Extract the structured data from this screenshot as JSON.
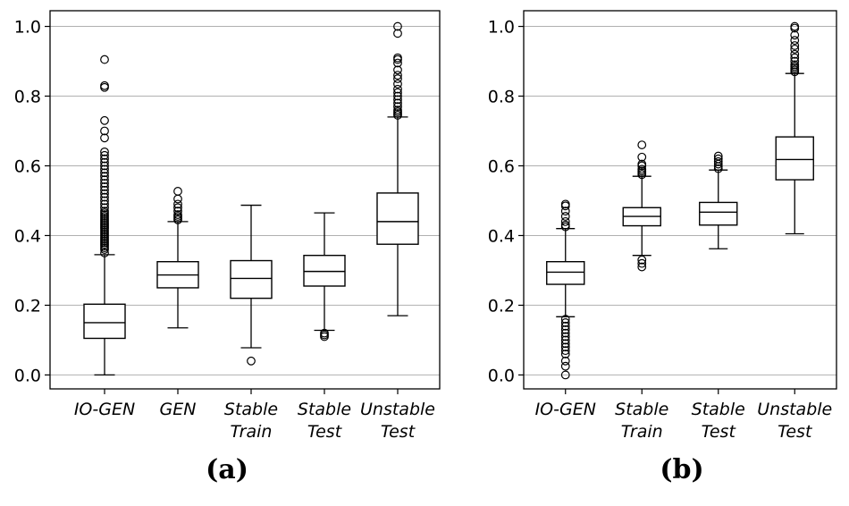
{
  "chart_data": [
    {
      "type": "box",
      "panel_label": "(a)",
      "categories": [
        [
          "IO-GEN"
        ],
        [
          "GEN"
        ],
        [
          "Stable",
          "Train"
        ],
        [
          "Stable",
          "Test"
        ],
        [
          "Unstable",
          "Test"
        ]
      ],
      "ylim": [
        -0.04,
        1.045
      ],
      "yticks": [
        0.0,
        0.2,
        0.4,
        0.6,
        0.8,
        1.0
      ],
      "grid": "horizontal",
      "boxes": [
        {
          "whisker_low": 0.0,
          "q1": 0.105,
          "median": 0.15,
          "q3": 0.203,
          "whisker_high": 0.345,
          "outliers": [
            0.35,
            0.36,
            0.365,
            0.37,
            0.375,
            0.38,
            0.385,
            0.39,
            0.395,
            0.4,
            0.405,
            0.41,
            0.415,
            0.42,
            0.425,
            0.43,
            0.435,
            0.44,
            0.445,
            0.45,
            0.455,
            0.46,
            0.465,
            0.47,
            0.48,
            0.49,
            0.5,
            0.51,
            0.52,
            0.53,
            0.54,
            0.55,
            0.56,
            0.57,
            0.58,
            0.59,
            0.6,
            0.61,
            0.62,
            0.63,
            0.64,
            0.68,
            0.7,
            0.73,
            0.825,
            0.83,
            0.905
          ]
        },
        {
          "whisker_low": 0.135,
          "q1": 0.25,
          "median": 0.287,
          "q3": 0.325,
          "whisker_high": 0.44,
          "outliers": [
            0.445,
            0.45,
            0.455,
            0.46,
            0.47,
            0.48,
            0.49,
            0.505,
            0.527
          ]
        },
        {
          "whisker_low": 0.078,
          "q1": 0.22,
          "median": 0.277,
          "q3": 0.328,
          "whisker_high": 0.487,
          "outliers": [
            0.04
          ]
        },
        {
          "whisker_low": 0.128,
          "q1": 0.255,
          "median": 0.297,
          "q3": 0.343,
          "whisker_high": 0.465,
          "outliers": [
            0.11,
            0.115,
            0.12
          ]
        },
        {
          "whisker_low": 0.17,
          "q1": 0.375,
          "median": 0.44,
          "q3": 0.522,
          "whisker_high": 0.74,
          "outliers": [
            0.745,
            0.75,
            0.755,
            0.76,
            0.77,
            0.78,
            0.79,
            0.8,
            0.81,
            0.82,
            0.835,
            0.85,
            0.86,
            0.875,
            0.895,
            0.905,
            0.91,
            0.98,
            1.0
          ]
        }
      ]
    },
    {
      "type": "box",
      "panel_label": "(b)",
      "categories": [
        [
          "IO-GEN"
        ],
        [
          "Stable",
          "Train"
        ],
        [
          "Stable",
          "Test"
        ],
        [
          "Unstable",
          "Test"
        ]
      ],
      "ylim": [
        -0.04,
        1.045
      ],
      "yticks": [
        0.0,
        0.2,
        0.4,
        0.6,
        0.8,
        1.0
      ],
      "grid": "horizontal",
      "boxes": [
        {
          "whisker_low": 0.167,
          "q1": 0.26,
          "median": 0.295,
          "q3": 0.325,
          "whisker_high": 0.42,
          "outliers": [
            0.0,
            0.025,
            0.04,
            0.06,
            0.07,
            0.08,
            0.09,
            0.1,
            0.11,
            0.12,
            0.13,
            0.14,
            0.15,
            0.16,
            0.425,
            0.43,
            0.44,
            0.455,
            0.47,
            0.485,
            0.49
          ]
        },
        {
          "whisker_low": 0.343,
          "q1": 0.428,
          "median": 0.455,
          "q3": 0.48,
          "whisker_high": 0.57,
          "outliers": [
            0.31,
            0.32,
            0.33,
            0.575,
            0.58,
            0.585,
            0.59,
            0.6,
            0.605,
            0.625,
            0.66
          ]
        },
        {
          "whisker_low": 0.362,
          "q1": 0.43,
          "median": 0.467,
          "q3": 0.495,
          "whisker_high": 0.588,
          "outliers": [
            0.592,
            0.598,
            0.605,
            0.612,
            0.62,
            0.628
          ]
        },
        {
          "whisker_low": 0.405,
          "q1": 0.56,
          "median": 0.618,
          "q3": 0.683,
          "whisker_high": 0.865,
          "outliers": [
            0.87,
            0.875,
            0.88,
            0.885,
            0.89,
            0.9,
            0.91,
            0.92,
            0.935,
            0.945,
            0.96,
            0.975,
            0.995,
            1.0
          ]
        }
      ]
    }
  ]
}
